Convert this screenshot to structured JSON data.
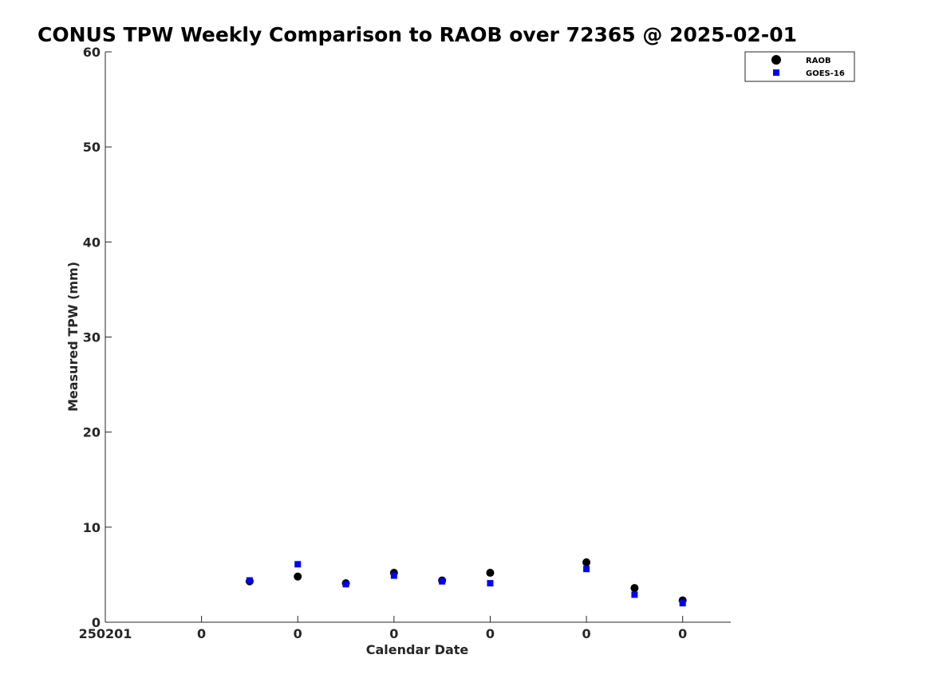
{
  "chart_data": {
    "type": "scatter",
    "title": "CONUS TPW Weekly Comparison to RAOB over 72365 @ 2025-02-01",
    "xlabel": "Calendar Date",
    "ylabel": "Measured TPW (mm)",
    "ylim": [
      0,
      60
    ],
    "xlim": [
      0,
      13
    ],
    "yticks": [
      0,
      10,
      20,
      30,
      40,
      50,
      60
    ],
    "xticks": [
      0,
      2,
      4,
      6,
      8,
      10,
      12
    ],
    "xtick_labels": [
      "250201",
      "0",
      "0",
      "0",
      "0",
      "0",
      "0"
    ],
    "grid": false,
    "legend_position": "top-right",
    "series": [
      {
        "name": "RAOB",
        "marker": "circle",
        "color": "#000000",
        "x": [
          3.0,
          4.0,
          5.0,
          6.0,
          7.0,
          8.0,
          10.0,
          11.0,
          12.0
        ],
        "y": [
          4.3,
          4.8,
          4.1,
          5.2,
          4.4,
          5.2,
          6.3,
          3.6,
          2.3
        ]
      },
      {
        "name": "GOES-16",
        "marker": "square",
        "color": "#0000ff",
        "x": [
          3.0,
          4.0,
          5.0,
          6.0,
          7.0,
          8.0,
          10.0,
          11.0,
          12.0
        ],
        "y": [
          4.4,
          6.1,
          4.0,
          4.9,
          4.3,
          4.1,
          5.6,
          2.9,
          2.0
        ]
      }
    ]
  }
}
